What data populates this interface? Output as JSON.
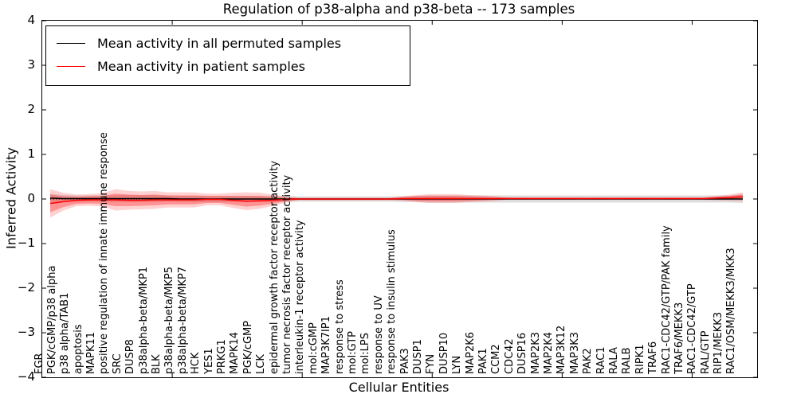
{
  "chart_data": {
    "type": "line",
    "title": "Regulation of p38-alpha and p38-beta -- 173 samples",
    "xlabel": "Cellular Entities",
    "ylabel": "Inferred Activity",
    "ylim": [
      -4,
      4
    ],
    "xlim": [
      0,
      55
    ],
    "yticks": [
      4,
      3,
      2,
      1,
      0,
      -1,
      -2,
      -3,
      -4
    ],
    "xticks": [
      10,
      20,
      30,
      40,
      50
    ],
    "grid": false,
    "zero_reference_line": {
      "y": 0,
      "style": "dotted",
      "color": "#000000"
    },
    "legend": {
      "position": "upper left",
      "entries": [
        {
          "label": "Mean activity in all permuted samples",
          "color": "#000000"
        },
        {
          "label": "Mean activity in patient samples",
          "color": "#ff0000"
        }
      ]
    },
    "categories": [
      "FGR",
      "PGK/cGMP/p38 alpha",
      "p38 alpha/TAB1",
      "apoptosis",
      "MAPK11",
      "positive regulation of innate immune response",
      "SRC",
      "DUSP8",
      "p38alpha-beta/MKP1",
      "BLK",
      "p38alpha-beta/MKP5",
      "p38alpha-beta/MKP7",
      "HCK",
      "YES1",
      "PRKG1",
      "MAPK14",
      "PGK/cGMP",
      "LCK",
      "epidermal growth factor receptor activity",
      "tumor necrosis factor receptor activity",
      "interleukin-1 receptor activity",
      "mol:cGMP",
      "MAP3K7IP1",
      "response to stress",
      "mol:GTP",
      "mol:LPS",
      "response to UV",
      "response to insulin stimulus",
      "PAK3",
      "DUSP1",
      "FYN",
      "DUSP10",
      "LYN",
      "MAP2K6",
      "PAK1",
      "CCM2",
      "CDC42",
      "DUSP16",
      "MAP2K3",
      "MAP2K4",
      "MAP3K12",
      "MAP3K3",
      "PAK2",
      "RAC1",
      "RALA",
      "RALB",
      "RIPK1",
      "TRAF6",
      "RAC1-CDC42/GTP/PAK family",
      "TRAF6/MEKK3",
      "RAC1-CDC42/GTP",
      "RAL/GTP",
      "RIP1/MEKK3",
      "RAC1/OSM/MEKK3/MKK3"
    ],
    "series": [
      {
        "name": "Mean activity in all permuted samples",
        "color": "#000000",
        "values": [
          0.02,
          0.01,
          0.01,
          0.01,
          0.01,
          0.01,
          0.01,
          0.01,
          0.01,
          0.01,
          0.0,
          0.0,
          0.0,
          0.0,
          0.0,
          0.0,
          0.0,
          0.0,
          0.0,
          0.0,
          0.0,
          0.0,
          0.0,
          0.0,
          0.0,
          0.0,
          0.0,
          0.0,
          0.0,
          0.0,
          0.0,
          0.0,
          0.0,
          0.0,
          0.0,
          0.0,
          0.0,
          0.0,
          0.0,
          0.0,
          0.0,
          0.0,
          0.0,
          0.0,
          0.0,
          0.0,
          0.0,
          0.0,
          0.0,
          0.0,
          0.0,
          0.0,
          0.0,
          0.0
        ]
      },
      {
        "name": "Mean activity in patient samples",
        "color": "#ff0000",
        "values": [
          -0.1,
          -0.06,
          -0.03,
          -0.02,
          -0.02,
          -0.02,
          -0.03,
          -0.03,
          -0.02,
          -0.02,
          -0.02,
          -0.02,
          -0.01,
          -0.01,
          -0.03,
          -0.05,
          -0.04,
          -0.03,
          -0.01,
          0.0,
          0.0,
          0.0,
          0.0,
          0.0,
          0.0,
          0.0,
          0.0,
          0.01,
          0.01,
          0.01,
          0.01,
          0.01,
          0.01,
          0.01,
          0.01,
          0.01,
          0.01,
          0.01,
          0.01,
          0.01,
          0.01,
          0.01,
          0.01,
          0.01,
          0.01,
          0.01,
          0.01,
          0.01,
          0.01,
          0.01,
          0.01,
          0.02,
          0.03,
          0.05
        ]
      }
    ],
    "bands": [
      {
        "name": "permuted-samples-spread",
        "center": "permuted",
        "color": "rgba(0,0,0,0.13)",
        "half_widths": [
          0.1,
          0.08,
          0.07,
          0.07,
          0.07,
          0.08,
          0.08,
          0.08,
          0.08,
          0.07,
          0.07,
          0.07,
          0.07,
          0.07,
          0.07,
          0.07,
          0.07,
          0.07,
          0.07,
          0.06,
          0.06,
          0.06,
          0.06,
          0.06,
          0.06,
          0.06,
          0.06,
          0.07,
          0.07,
          0.08,
          0.08,
          0.08,
          0.08,
          0.08,
          0.08,
          0.08,
          0.08,
          0.08,
          0.08,
          0.08,
          0.08,
          0.08,
          0.08,
          0.08,
          0.08,
          0.08,
          0.08,
          0.08,
          0.08,
          0.08,
          0.08,
          0.08,
          0.08,
          0.09
        ]
      },
      {
        "name": "patient-samples-spread-outer",
        "center": "patient",
        "color": "rgba(255,0,0,0.18)",
        "half_widths": [
          0.32,
          0.2,
          0.13,
          0.13,
          0.15,
          0.24,
          0.21,
          0.2,
          0.2,
          0.17,
          0.17,
          0.17,
          0.13,
          0.13,
          0.17,
          0.2,
          0.18,
          0.13,
          0.07,
          0.03,
          0.03,
          0.03,
          0.03,
          0.03,
          0.03,
          0.03,
          0.03,
          0.05,
          0.08,
          0.1,
          0.1,
          0.1,
          0.08,
          0.07,
          0.05,
          0.03,
          0.03,
          0.03,
          0.03,
          0.03,
          0.03,
          0.03,
          0.03,
          0.03,
          0.03,
          0.03,
          0.03,
          0.03,
          0.03,
          0.03,
          0.03,
          0.05,
          0.07,
          0.1
        ]
      },
      {
        "name": "patient-samples-spread-inner",
        "center": "patient",
        "color": "rgba(255,0,0,0.30)",
        "half_widths": [
          0.2,
          0.12,
          0.08,
          0.08,
          0.09,
          0.14,
          0.13,
          0.12,
          0.12,
          0.1,
          0.1,
          0.1,
          0.08,
          0.08,
          0.1,
          0.12,
          0.11,
          0.08,
          0.04,
          0.02,
          0.02,
          0.02,
          0.02,
          0.02,
          0.02,
          0.02,
          0.02,
          0.03,
          0.05,
          0.06,
          0.06,
          0.06,
          0.05,
          0.04,
          0.03,
          0.02,
          0.02,
          0.02,
          0.02,
          0.02,
          0.02,
          0.02,
          0.02,
          0.02,
          0.02,
          0.02,
          0.02,
          0.02,
          0.02,
          0.02,
          0.02,
          0.03,
          0.04,
          0.06
        ]
      }
    ]
  }
}
